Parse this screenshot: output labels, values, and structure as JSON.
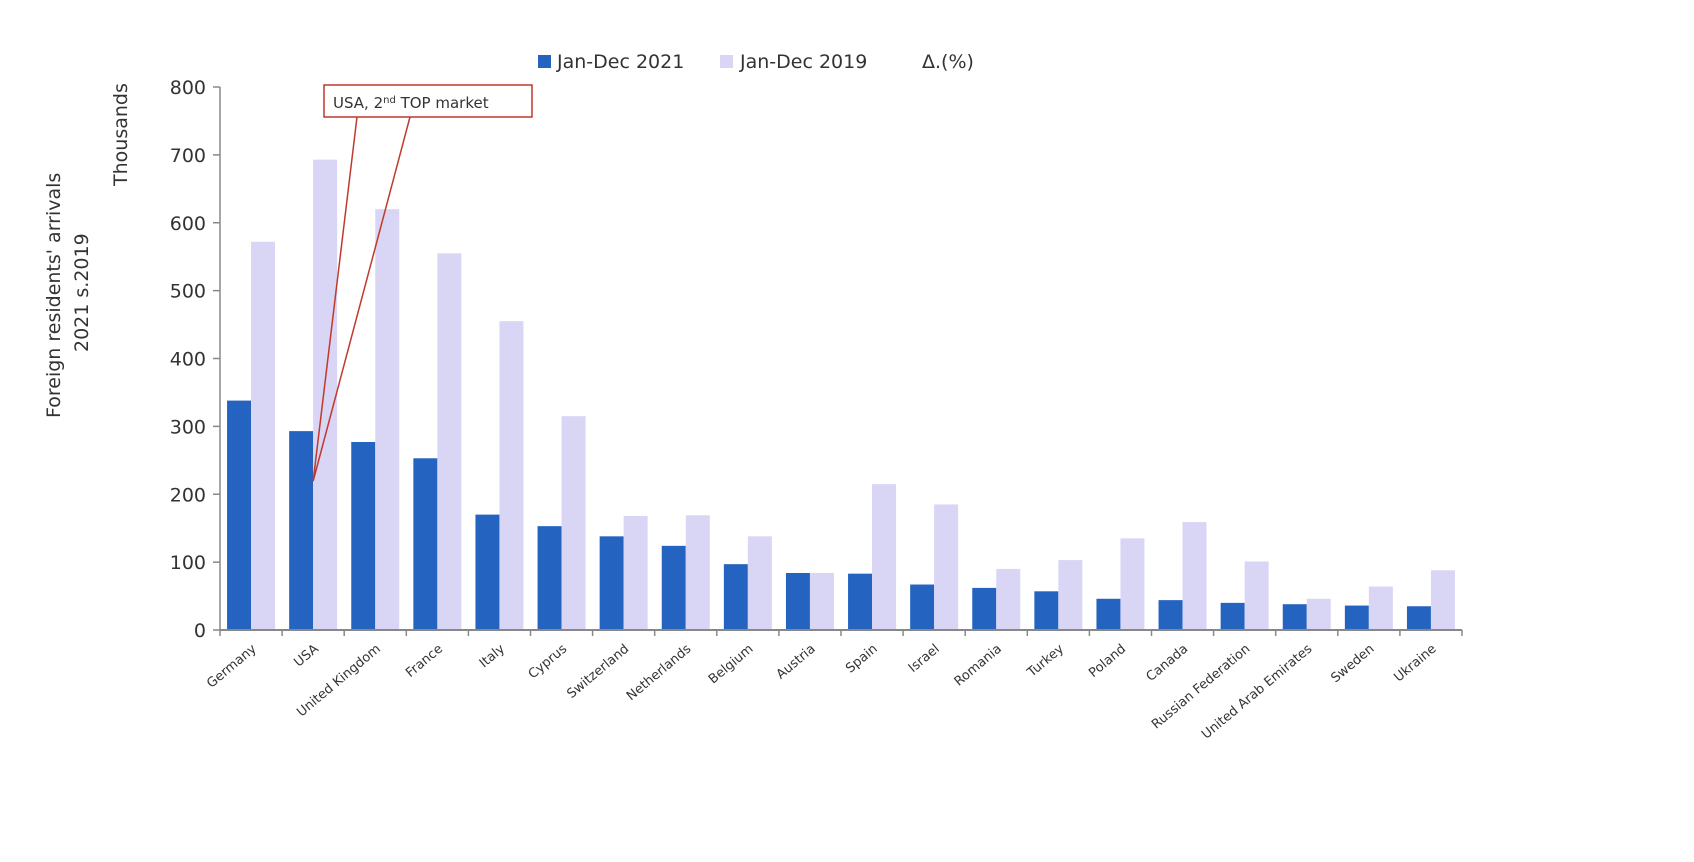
{
  "colors": {
    "series_2021": "#2563c0",
    "series_2019": "#d9d5f5",
    "axis": "#888888",
    "annotation": "#c0392b"
  },
  "chart_data": {
    "type": "bar",
    "title": "",
    "xlabel": "",
    "ylabel": "Foreign residents' arrivals 2021 s.2019",
    "ylabel_lines": [
      "Foreign residents' arrivals",
      "2021 s.2019"
    ],
    "y_unit": "Thousands",
    "ylim": [
      0,
      800
    ],
    "yticks": [
      0,
      100,
      200,
      300,
      400,
      500,
      600,
      700,
      800
    ],
    "grid": false,
    "legend_position": "top-center",
    "legend": [
      "Jan-Dec 2021",
      "Jan-Dec 2019",
      "Δ.(%)"
    ],
    "categories": [
      "Germany",
      "USA",
      "United Kingdom",
      "France",
      "Italy",
      "Cyprus",
      "Switzerland",
      "Netherlands",
      "Belgium",
      "Austria",
      "Spain",
      "Israel",
      "Romania",
      "Turkey",
      "Poland",
      "Canada",
      "Russian Federation",
      "United Arab Emirates",
      "Sweden",
      "Ukraine"
    ],
    "series": [
      {
        "name": "Jan-Dec 2021",
        "values": [
          338,
          293,
          277,
          253,
          170,
          153,
          138,
          124,
          97,
          84,
          83,
          67,
          62,
          57,
          46,
          44,
          40,
          38,
          36,
          35
        ]
      },
      {
        "name": "Jan-Dec 2019",
        "values": [
          572,
          693,
          620,
          555,
          455,
          315,
          168,
          169,
          138,
          84,
          215,
          185,
          90,
          103,
          135,
          159,
          101,
          46,
          64,
          88
        ]
      }
    ],
    "annotation": {
      "text_main": "USA, 2",
      "text_sup": "nd",
      "text_tail": " TOP market",
      "target_category": "USA"
    }
  }
}
